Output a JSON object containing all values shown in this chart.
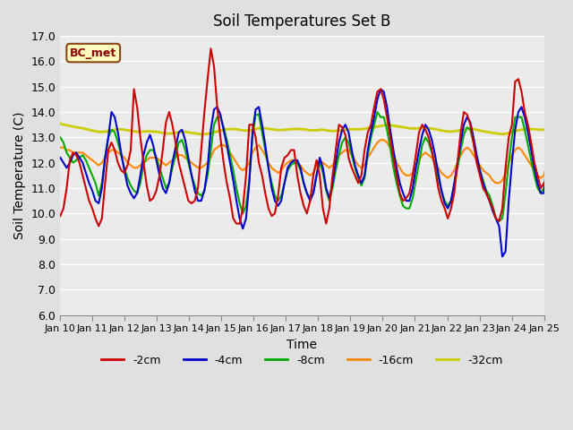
{
  "title": "Soil Temperatures Set B",
  "xlabel": "Time",
  "ylabel": "Soil Temperature (C)",
  "ylim": [
    6.0,
    17.0
  ],
  "yticks": [
    6.0,
    7.0,
    8.0,
    9.0,
    10.0,
    11.0,
    12.0,
    13.0,
    14.0,
    15.0,
    16.0,
    17.0
  ],
  "x_labels": [
    "Jan 10",
    "Jan 11",
    "Jan 12",
    "Jan 13",
    "Jan 14",
    "Jan 15",
    "Jan 16",
    "Jan 17",
    "Jan 18",
    "Jan 19",
    "Jan 20",
    "Jan 21",
    "Jan 22",
    "Jan 23",
    "Jan 24",
    "Jan 25"
  ],
  "annotation_text": "BC_met",
  "annotation_color": "#8B0000",
  "annotation_bg": "#FFFFC0",
  "annotation_border": "#8B4513",
  "fig_bg": "#E0E0E0",
  "plot_bg": "#EBEBEB",
  "series": {
    "-2cm": {
      "color": "#CC0000",
      "linewidth": 1.5,
      "values": [
        9.9,
        10.2,
        11.0,
        12.1,
        12.4,
        12.3,
        12.0,
        11.5,
        11.0,
        10.5,
        10.2,
        9.8,
        9.5,
        9.8,
        11.2,
        12.5,
        12.8,
        12.5,
        12.0,
        11.7,
        11.6,
        11.9,
        12.5,
        14.9,
        14.2,
        13.0,
        12.0,
        11.1,
        10.5,
        10.6,
        10.9,
        11.5,
        12.5,
        13.6,
        14.0,
        13.5,
        12.8,
        12.0,
        11.5,
        11.0,
        10.5,
        10.4,
        10.5,
        11.0,
        12.5,
        14.0,
        15.3,
        16.5,
        15.8,
        14.2,
        13.0,
        12.0,
        11.2,
        10.6,
        9.8,
        9.6,
        9.6,
        10.2,
        11.5,
        13.5,
        13.5,
        13.0,
        12.0,
        11.5,
        10.8,
        10.2,
        9.9,
        10.0,
        10.7,
        11.8,
        12.2,
        12.3,
        12.5,
        12.5,
        11.5,
        10.8,
        10.3,
        10.0,
        10.5,
        11.5,
        12.1,
        11.5,
        10.2,
        9.6,
        10.2,
        11.5,
        12.5,
        13.5,
        13.4,
        13.1,
        12.2,
        11.8,
        11.5,
        11.2,
        11.5,
        12.5,
        13.2,
        13.5,
        14.2,
        14.8,
        14.9,
        14.5,
        13.8,
        13.0,
        12.2,
        11.5,
        10.8,
        10.5,
        10.6,
        10.8,
        11.5,
        12.3,
        13.2,
        13.5,
        13.3,
        13.0,
        12.5,
        11.8,
        11.0,
        10.5,
        10.2,
        9.8,
        10.2,
        10.8,
        12.0,
        13.2,
        14.0,
        13.9,
        13.5,
        12.8,
        12.0,
        11.5,
        11.0,
        10.8,
        10.5,
        10.2,
        9.8,
        9.7,
        10.2,
        11.8,
        13.0,
        13.5,
        15.2,
        15.3,
        14.8,
        14.0,
        13.5,
        12.8,
        12.0,
        11.5,
        11.0,
        11.2
      ]
    },
    "-4cm": {
      "color": "#0000CC",
      "linewidth": 1.5,
      "values": [
        12.2,
        12.0,
        11.8,
        12.0,
        12.3,
        12.4,
        12.2,
        12.0,
        11.6,
        11.2,
        10.9,
        10.5,
        10.4,
        11.0,
        12.2,
        13.0,
        14.0,
        13.8,
        13.2,
        12.4,
        11.7,
        11.1,
        10.8,
        10.6,
        10.8,
        11.5,
        12.3,
        12.8,
        13.1,
        12.7,
        12.1,
        11.5,
        11.0,
        10.8,
        11.2,
        12.0,
        12.6,
        13.2,
        13.3,
        12.9,
        12.2,
        11.5,
        10.9,
        10.5,
        10.5,
        10.9,
        11.8,
        13.3,
        14.1,
        14.2,
        13.9,
        13.3,
        12.7,
        12.0,
        11.3,
        10.5,
        9.8,
        9.4,
        9.8,
        11.2,
        13.2,
        14.1,
        14.2,
        13.5,
        12.7,
        11.8,
        11.0,
        10.5,
        10.3,
        10.5,
        11.2,
        11.8,
        12.0,
        12.1,
        12.1,
        11.8,
        11.2,
        10.8,
        10.5,
        10.8,
        11.5,
        12.2,
        11.8,
        11.0,
        10.6,
        11.2,
        12.0,
        12.8,
        13.3,
        13.5,
        13.2,
        12.5,
        11.9,
        11.5,
        11.2,
        11.5,
        12.5,
        13.2,
        13.8,
        14.5,
        14.9,
        14.8,
        14.2,
        13.3,
        12.5,
        11.8,
        11.2,
        10.8,
        10.5,
        10.5,
        11.0,
        11.8,
        12.5,
        13.1,
        13.5,
        13.3,
        12.9,
        12.3,
        11.6,
        10.9,
        10.4,
        10.2,
        10.5,
        11.2,
        12.0,
        12.8,
        13.5,
        13.8,
        13.6,
        13.0,
        12.3,
        11.7,
        11.2,
        10.8,
        10.5,
        10.1,
        9.8,
        9.5,
        8.3,
        8.5,
        10.5,
        12.0,
        13.3,
        14.0,
        14.2,
        13.8,
        13.2,
        12.5,
        11.8,
        11.2,
        10.8,
        10.8,
        12.0
      ]
    },
    "-8cm": {
      "color": "#00AA00",
      "linewidth": 1.5,
      "values": [
        13.0,
        12.8,
        12.4,
        12.2,
        12.0,
        12.1,
        12.2,
        12.3,
        12.1,
        11.8,
        11.5,
        11.2,
        10.7,
        11.2,
        12.2,
        13.0,
        13.3,
        13.2,
        12.8,
        12.3,
        11.8,
        11.4,
        11.1,
        10.9,
        10.8,
        11.2,
        11.9,
        12.3,
        12.5,
        12.5,
        12.2,
        11.8,
        11.4,
        11.0,
        11.2,
        11.8,
        12.3,
        12.8,
        12.9,
        12.5,
        12.0,
        11.5,
        11.1,
        10.8,
        10.7,
        10.9,
        11.5,
        12.5,
        13.5,
        13.8,
        13.8,
        13.4,
        12.9,
        12.3,
        11.7,
        11.0,
        10.4,
        10.0,
        10.3,
        11.3,
        13.0,
        13.9,
        13.9,
        13.2,
        12.5,
        11.8,
        11.2,
        10.7,
        10.5,
        10.7,
        11.2,
        11.7,
        11.9,
        12.0,
        12.0,
        11.7,
        11.2,
        10.8,
        10.6,
        10.8,
        11.5,
        12.0,
        11.6,
        10.9,
        10.5,
        11.0,
        11.7,
        12.3,
        12.8,
        13.0,
        12.8,
        12.3,
        11.8,
        11.4,
        11.1,
        11.4,
        12.3,
        13.0,
        13.5,
        14.0,
        13.8,
        13.8,
        13.3,
        12.6,
        11.8,
        11.2,
        10.7,
        10.3,
        10.2,
        10.2,
        10.6,
        11.3,
        12.0,
        12.7,
        13.0,
        12.8,
        12.4,
        11.9,
        11.4,
        10.9,
        10.5,
        10.3,
        10.5,
        11.1,
        11.8,
        12.5,
        13.1,
        13.4,
        13.3,
        12.8,
        12.2,
        11.7,
        11.3,
        10.9,
        10.7,
        10.3,
        9.8,
        9.7,
        9.8,
        10.8,
        12.0,
        13.0,
        13.8,
        13.8,
        13.8,
        13.3,
        12.7,
        12.1,
        11.5,
        11.0,
        10.8,
        11.0,
        12.1
      ]
    },
    "-16cm": {
      "color": "#FF8800",
      "linewidth": 1.5,
      "values": [
        12.6,
        12.6,
        12.5,
        12.5,
        12.4,
        12.4,
        12.4,
        12.4,
        12.3,
        12.2,
        12.1,
        12.0,
        11.9,
        12.0,
        12.2,
        12.4,
        12.5,
        12.5,
        12.4,
        12.3,
        12.2,
        12.0,
        11.9,
        11.8,
        11.8,
        11.9,
        12.0,
        12.1,
        12.2,
        12.2,
        12.2,
        12.1,
        12.0,
        11.9,
        12.0,
        12.1,
        12.2,
        12.3,
        12.3,
        12.2,
        12.1,
        12.0,
        11.9,
        11.8,
        11.8,
        11.9,
        12.0,
        12.2,
        12.5,
        12.6,
        12.7,
        12.7,
        12.6,
        12.4,
        12.2,
        12.0,
        11.8,
        11.7,
        11.8,
        12.0,
        12.4,
        12.6,
        12.7,
        12.5,
        12.3,
        12.0,
        11.8,
        11.7,
        11.6,
        11.7,
        11.9,
        12.0,
        12.1,
        12.1,
        12.0,
        11.9,
        11.7,
        11.6,
        11.5,
        11.6,
        11.9,
        12.1,
        12.0,
        11.9,
        11.8,
        11.9,
        12.1,
        12.3,
        12.4,
        12.5,
        12.5,
        12.3,
        12.1,
        11.9,
        11.8,
        11.9,
        12.2,
        12.4,
        12.6,
        12.8,
        12.9,
        12.9,
        12.8,
        12.6,
        12.3,
        12.0,
        11.8,
        11.6,
        11.5,
        11.5,
        11.6,
        11.9,
        12.1,
        12.3,
        12.4,
        12.3,
        12.2,
        12.0,
        11.8,
        11.6,
        11.5,
        11.4,
        11.5,
        11.7,
        12.0,
        12.3,
        12.5,
        12.6,
        12.5,
        12.3,
        12.1,
        11.9,
        11.7,
        11.6,
        11.5,
        11.3,
        11.2,
        11.2,
        11.3,
        11.6,
        12.0,
        12.3,
        12.5,
        12.6,
        12.5,
        12.3,
        12.1,
        11.9,
        11.7,
        11.5,
        11.4,
        11.5,
        12.0
      ]
    },
    "-32cm": {
      "color": "#CCCC00",
      "linewidth": 2.0,
      "values": [
        13.55,
        13.5,
        13.48,
        13.45,
        13.43,
        13.4,
        13.38,
        13.36,
        13.33,
        13.3,
        13.27,
        13.24,
        13.22,
        13.22,
        13.22,
        13.25,
        13.28,
        13.3,
        13.32,
        13.32,
        13.3,
        13.28,
        13.26,
        13.24,
        13.22,
        13.22,
        13.23,
        13.24,
        13.24,
        13.23,
        13.22,
        13.2,
        13.18,
        13.15,
        13.15,
        13.16,
        13.18,
        13.2,
        13.22,
        13.22,
        13.2,
        13.18,
        13.16,
        13.14,
        13.13,
        13.13,
        13.14,
        13.17,
        13.2,
        13.23,
        13.27,
        13.3,
        13.32,
        13.33,
        13.33,
        13.32,
        13.3,
        13.28,
        13.27,
        13.28,
        13.3,
        13.33,
        13.36,
        13.37,
        13.36,
        13.34,
        13.32,
        13.3,
        13.29,
        13.29,
        13.3,
        13.31,
        13.32,
        13.33,
        13.33,
        13.33,
        13.32,
        13.3,
        13.28,
        13.28,
        13.28,
        13.3,
        13.3,
        13.28,
        13.26,
        13.25,
        13.26,
        13.27,
        13.28,
        13.3,
        13.31,
        13.32,
        13.32,
        13.32,
        13.32,
        13.34,
        13.36,
        13.38,
        13.4,
        13.43,
        13.45,
        13.47,
        13.48,
        13.48,
        13.46,
        13.44,
        13.42,
        13.4,
        13.38,
        13.36,
        13.35,
        13.35,
        13.36,
        13.37,
        13.38,
        13.37,
        13.35,
        13.33,
        13.3,
        13.27,
        13.25,
        13.23,
        13.23,
        13.24,
        13.26,
        13.29,
        13.32,
        13.34,
        13.35,
        13.33,
        13.3,
        13.27,
        13.24,
        13.22,
        13.2,
        13.18,
        13.16,
        13.14,
        13.13,
        13.14,
        13.17,
        13.21,
        13.25,
        13.28,
        13.3,
        13.32,
        13.33,
        13.33,
        13.32,
        13.31,
        13.3,
        13.3,
        13.32
      ]
    }
  },
  "series_order": [
    "-32cm",
    "-16cm",
    "-8cm",
    "-4cm",
    "-2cm"
  ],
  "legend_order": [
    "-2cm",
    "-4cm",
    "-8cm",
    "-16cm",
    "-32cm"
  ]
}
